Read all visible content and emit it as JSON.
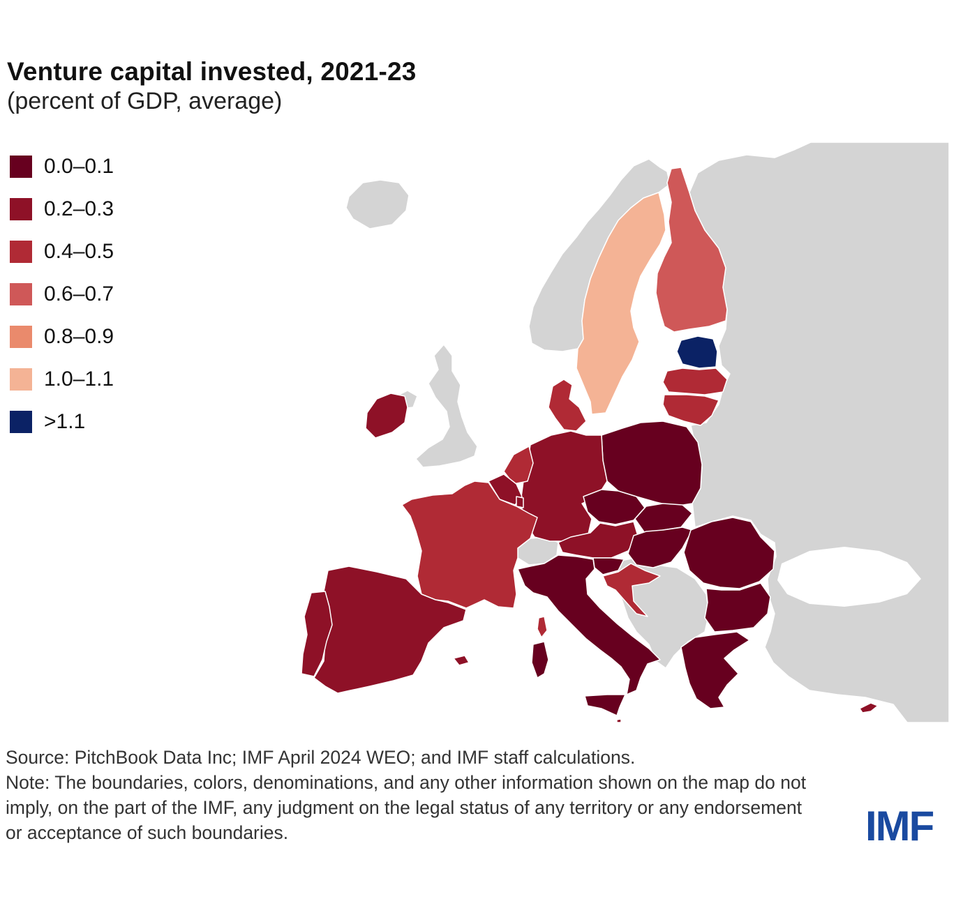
{
  "title": "Venture capital invested, 2021-23",
  "subtitle": "(percent of GDP, average)",
  "legend": [
    {
      "label": "0.0–0.1",
      "color": "#67001f"
    },
    {
      "label": "0.2–0.3",
      "color": "#8e1127"
    },
    {
      "label": "0.4–0.5",
      "color": "#b02a35"
    },
    {
      "label": "0.6–0.7",
      "color": "#cf5858"
    },
    {
      "label": "0.8–0.9",
      "color": "#ea8a6c"
    },
    {
      "label": "1.0–1.1",
      "color": "#f4b395"
    },
    {
      "label": ">1.1",
      "color": "#0b2265"
    }
  ],
  "map": {
    "non_eu_color": "#d4d4d4",
    "countries": [
      {
        "name": "Estonia",
        "bin": ">1.1"
      },
      {
        "name": "Sweden",
        "bin": "1.0–1.1"
      },
      {
        "name": "Finland",
        "bin": "0.6–0.7"
      },
      {
        "name": "Latvia",
        "bin": "0.4–0.5"
      },
      {
        "name": "Lithuania",
        "bin": "0.4–0.5"
      },
      {
        "name": "Denmark",
        "bin": "0.4–0.5"
      },
      {
        "name": "Netherlands",
        "bin": "0.4–0.5"
      },
      {
        "name": "France",
        "bin": "0.4–0.5"
      },
      {
        "name": "Croatia",
        "bin": "0.4–0.5"
      },
      {
        "name": "Ireland",
        "bin": "0.2–0.3"
      },
      {
        "name": "Germany",
        "bin": "0.2–0.3"
      },
      {
        "name": "Belgium",
        "bin": "0.2–0.3"
      },
      {
        "name": "Luxembourg",
        "bin": "0.2–0.3"
      },
      {
        "name": "Austria",
        "bin": "0.2–0.3"
      },
      {
        "name": "Spain",
        "bin": "0.2–0.3"
      },
      {
        "name": "Portugal",
        "bin": "0.2–0.3"
      },
      {
        "name": "Cyprus",
        "bin": "0.2–0.3"
      },
      {
        "name": "Malta",
        "bin": "0.2–0.3"
      },
      {
        "name": "Poland",
        "bin": "0.0–0.1"
      },
      {
        "name": "Czechia",
        "bin": "0.0–0.1"
      },
      {
        "name": "Slovakia",
        "bin": "0.0–0.1"
      },
      {
        "name": "Hungary",
        "bin": "0.0–0.1"
      },
      {
        "name": "Slovenia",
        "bin": "0.0–0.1"
      },
      {
        "name": "Italy",
        "bin": "0.0–0.1"
      },
      {
        "name": "Romania",
        "bin": "0.0–0.1"
      },
      {
        "name": "Bulgaria",
        "bin": "0.0–0.1"
      },
      {
        "name": "Greece",
        "bin": "0.0–0.1"
      }
    ]
  },
  "footer": {
    "source": "Source: PitchBook Data Inc; IMF April 2024 WEO; and IMF staff calculations.",
    "note": "Note: The boundaries, colors, denominations, and any other information shown on the map do not imply, on the part of the IMF, any judgment on the legal status of any territory or any endorsement or acceptance of such boundaries."
  },
  "logo": "IMF"
}
